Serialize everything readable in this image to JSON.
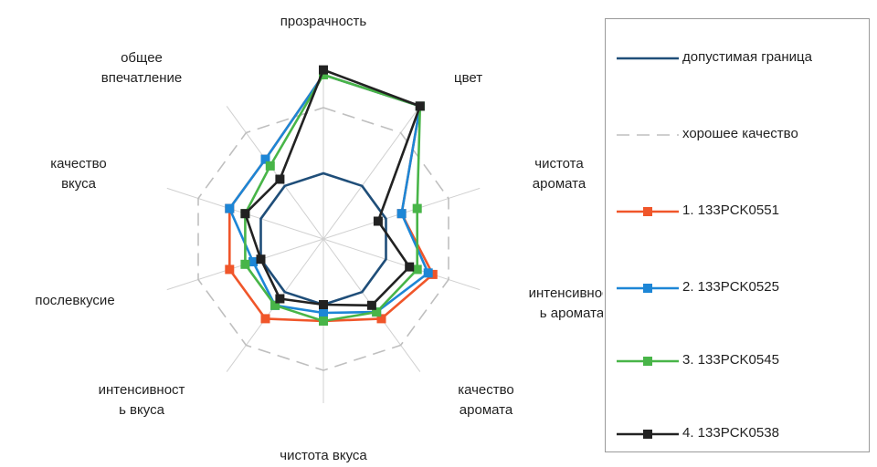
{
  "chart_data": {
    "type": "radar",
    "axes": [
      [
        "прозрачность"
      ],
      [
        "цвет"
      ],
      [
        "чистота",
        "аромата"
      ],
      [
        "интенсивност",
        "ь аромата"
      ],
      [
        "качество",
        "аромата"
      ],
      [
        "чистота вкуса"
      ],
      [
        "интенсивност",
        "ь вкуса"
      ],
      [
        "послевкусие"
      ],
      [
        "качество",
        "вкуса"
      ],
      [
        "общее",
        "впечатление"
      ]
    ],
    "rlim": [
      0,
      10
    ],
    "rings": [
      2,
      4,
      6,
      8,
      10
    ],
    "series": [
      {
        "name": "допустимая граница",
        "color": "#1f4e79",
        "style": "solid",
        "marker": "none",
        "values": [
          4,
          4,
          4,
          4,
          4,
          4,
          4,
          4,
          4,
          4
        ]
      },
      {
        "name": "хорошее качество",
        "color": "#bfbfbf",
        "style": "dashed",
        "marker": "none",
        "values": [
          8,
          8,
          8,
          8,
          8,
          8,
          8,
          8,
          8,
          8
        ]
      },
      {
        "name": "1. 133PCK0551",
        "color": "#f0562a",
        "style": "solid",
        "marker": "square",
        "values": [
          10,
          10,
          5,
          7,
          6,
          5,
          6,
          6,
          6,
          6
        ]
      },
      {
        "name": "2. 133PCK0525",
        "color": "#1d86d6",
        "style": "solid",
        "marker": "square",
        "values": [
          10,
          10,
          5,
          6.7,
          5.5,
          4.5,
          5,
          4.5,
          6,
          6
        ]
      },
      {
        "name": "3. 133PCK0545",
        "color": "#48b548",
        "style": "solid",
        "marker": "square",
        "values": [
          10,
          10,
          6,
          6,
          5.5,
          5,
          5,
          5,
          5,
          5.5
        ]
      },
      {
        "name": "4. 133PCK0538",
        "color": "#222222",
        "style": "solid",
        "marker": "square",
        "values": [
          10.3,
          10,
          3.5,
          5.5,
          5,
          4,
          4.5,
          4,
          5,
          4.5
        ]
      }
    ]
  }
}
